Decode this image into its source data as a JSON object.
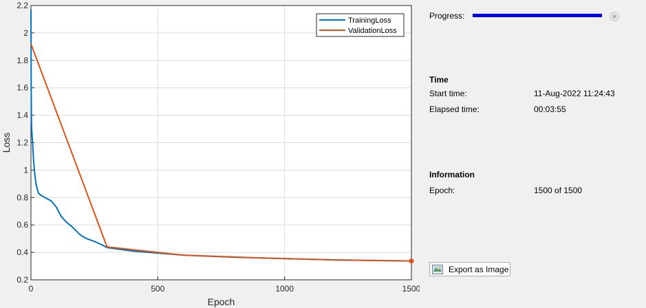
{
  "chart_data": {
    "type": "line",
    "xlabel": "Epoch",
    "ylabel": "Loss",
    "xlim": [
      0,
      1500
    ],
    "ylim": [
      0.2,
      2.2
    ],
    "xticks": [
      0,
      500,
      1000,
      1500
    ],
    "yticks": [
      0.2,
      0.4,
      0.6,
      0.8,
      1,
      1.2,
      1.4,
      1.6,
      1.8,
      2,
      2.2
    ],
    "grid": true,
    "legend_position": "top-right",
    "series": [
      {
        "name": "TrainingLoss",
        "color": "#0072BD",
        "x": [
          0,
          1,
          2,
          3,
          5,
          8,
          10,
          15,
          20,
          25,
          30,
          40,
          50,
          60,
          80,
          100,
          120,
          140,
          160,
          180,
          190,
          200,
          220,
          250,
          280,
          300,
          400,
          500,
          600,
          700,
          800,
          900,
          1000,
          1100,
          1200,
          1300,
          1400,
          1500
        ],
        "y": [
          2.17,
          1.6,
          1.36,
          1.29,
          1.24,
          1.15,
          1.08,
          0.97,
          0.9,
          0.86,
          0.83,
          0.815,
          0.805,
          0.795,
          0.775,
          0.73,
          0.66,
          0.62,
          0.59,
          0.555,
          0.535,
          0.52,
          0.5,
          0.48,
          0.455,
          0.435,
          0.41,
          0.395,
          0.38,
          0.372,
          0.365,
          0.36,
          0.355,
          0.35,
          0.345,
          0.342,
          0.34,
          0.337
        ]
      },
      {
        "name": "ValidationLoss",
        "color": "#D95319",
        "x": [
          0,
          300,
          600,
          900,
          1200,
          1500
        ],
        "y": [
          1.92,
          0.44,
          0.38,
          0.36,
          0.345,
          0.337
        ]
      }
    ]
  },
  "panel": {
    "progress_label": "Progress:",
    "progress_value": 1.0,
    "time_heading": "Time",
    "start_label": "Start time:",
    "start_value": "11-Aug-2022 11:24:43",
    "elapsed_label": "Elapsed time:",
    "elapsed_value": "00:03:55",
    "info_heading": "Information",
    "epoch_label": "Epoch:",
    "epoch_value": "1500 of 1500",
    "export_label": "Export as Image",
    "stop_icon": "stop-icon",
    "export_icon": "export-image-icon"
  }
}
